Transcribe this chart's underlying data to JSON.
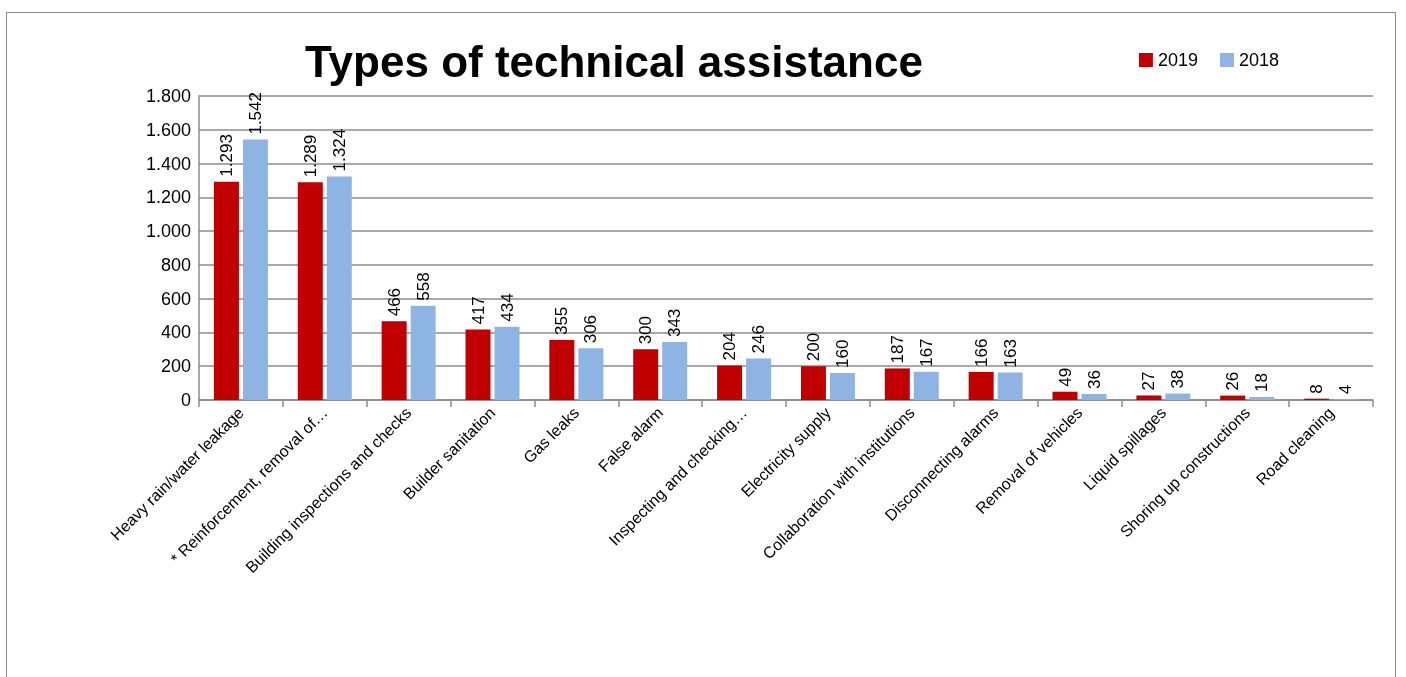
{
  "chart_data": {
    "type": "bar",
    "title": "Types of technical assistance",
    "categories": [
      "Heavy rain/water leakage",
      "* Reinforcement, removal of…",
      "Building inspections and checks",
      "Builder sanitation",
      "Gas leaks",
      "False alarm",
      "Inspecting and checking…",
      "Electricity supply",
      "Collaboration with institutions",
      "Disconnecting alarms",
      "Removal of vehicles",
      "Liquid spillages",
      "Shoring up constructions",
      "Road cleaning"
    ],
    "series": [
      {
        "name": "2019",
        "color": "#c00000",
        "values": [
          1293,
          1289,
          466,
          417,
          355,
          300,
          204,
          200,
          187,
          166,
          49,
          27,
          26,
          8
        ],
        "value_labels": [
          "1.293",
          "1.289",
          "466",
          "417",
          "355",
          "300",
          "204",
          "200",
          "187",
          "166",
          "49",
          "27",
          "26",
          "8"
        ]
      },
      {
        "name": "2018",
        "color": "#8eb4e3",
        "values": [
          1542,
          1324,
          558,
          434,
          306,
          343,
          246,
          160,
          167,
          163,
          36,
          38,
          18,
          4
        ],
        "value_labels": [
          "1.542",
          "1.324",
          "558",
          "434",
          "306",
          "343",
          "246",
          "160",
          "167",
          "163",
          "36",
          "38",
          "18",
          "4"
        ]
      }
    ],
    "ylim": [
      0,
      1800
    ],
    "yticks": [
      0,
      200,
      400,
      600,
      800,
      {
        "value": 1000,
        "label": "1.000"
      },
      {
        "value": 1200,
        "label": "1.200"
      },
      {
        "value": 1400,
        "label": "1.400"
      },
      {
        "value": 1600,
        "label": "1.600"
      },
      {
        "value": 1800,
        "label": "1.800"
      }
    ],
    "grid": "y",
    "legend": "top right"
  }
}
